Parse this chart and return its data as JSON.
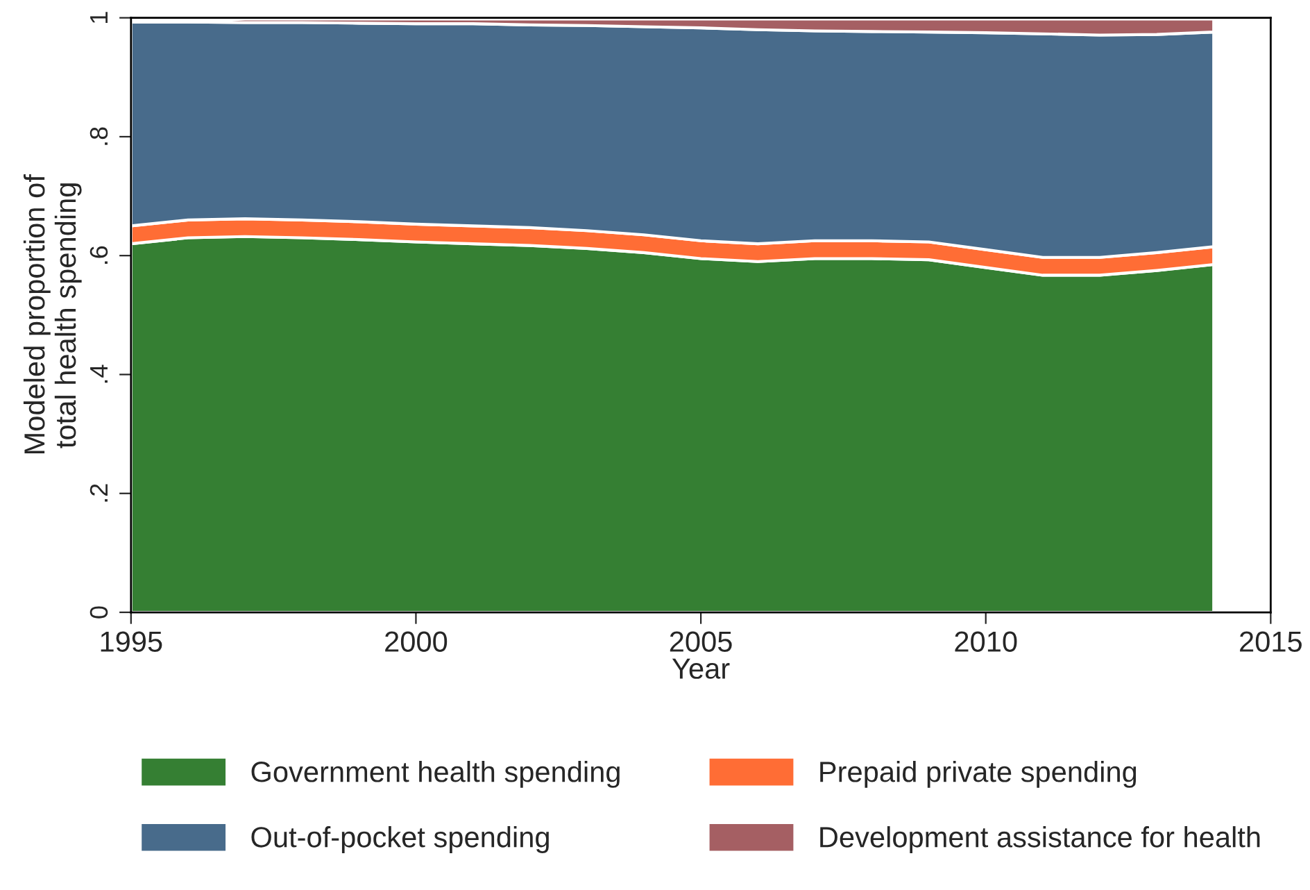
{
  "chart_data": {
    "type": "area",
    "stacked": true,
    "xlabel": "Year",
    "ylabel": "Modeled proportion of\ntotal health spending",
    "x": [
      1995,
      1996,
      1997,
      1998,
      1999,
      2000,
      2001,
      2002,
      2003,
      2004,
      2005,
      2006,
      2007,
      2008,
      2009,
      2010,
      2011,
      2012,
      2013,
      2014
    ],
    "series": [
      {
        "name": "Government health spending",
        "color": "#357f33",
        "values": [
          0.62,
          0.63,
          0.632,
          0.63,
          0.627,
          0.623,
          0.62,
          0.617,
          0.612,
          0.605,
          0.595,
          0.59,
          0.595,
          0.595,
          0.593,
          0.58,
          0.567,
          0.567,
          0.575,
          0.585
        ]
      },
      {
        "name": "Prepaid private spending",
        "color": "#ff6d35",
        "values": [
          0.03,
          0.03,
          0.03,
          0.03,
          0.03,
          0.03,
          0.03,
          0.03,
          0.03,
          0.03,
          0.03,
          0.03,
          0.03,
          0.03,
          0.03,
          0.03,
          0.03,
          0.03,
          0.03,
          0.03
        ]
      },
      {
        "name": "Out-of-pocket spending",
        "color": "#486b8b",
        "values": [
          0.343,
          0.333,
          0.33,
          0.332,
          0.334,
          0.337,
          0.34,
          0.341,
          0.345,
          0.35,
          0.358,
          0.36,
          0.353,
          0.352,
          0.353,
          0.365,
          0.376,
          0.374,
          0.367,
          0.361
        ]
      },
      {
        "name": "Development assistance for health",
        "color": "#a55f63",
        "values": [
          0,
          0,
          0.006,
          0.006,
          0.007,
          0.008,
          0.008,
          0.01,
          0.011,
          0.013,
          0.015,
          0.018,
          0.02,
          0.021,
          0.022,
          0.023,
          0.025,
          0.027,
          0.026,
          0.022
        ]
      }
    ],
    "xlim": [
      1995,
      2015
    ],
    "xticks": [
      1995,
      2000,
      2005,
      2010,
      2015
    ],
    "ylim": [
      0,
      1
    ],
    "yticks": [
      {
        "value": 0,
        "label": "0"
      },
      {
        "value": 0.2,
        "label": ".2"
      },
      {
        "value": 0.4,
        "label": ".4"
      },
      {
        "value": 0.6,
        "label": ".6"
      },
      {
        "value": 0.8,
        "label": ".8"
      },
      {
        "value": 1,
        "label": "1"
      }
    ],
    "grid": false,
    "legend": "bottom"
  }
}
